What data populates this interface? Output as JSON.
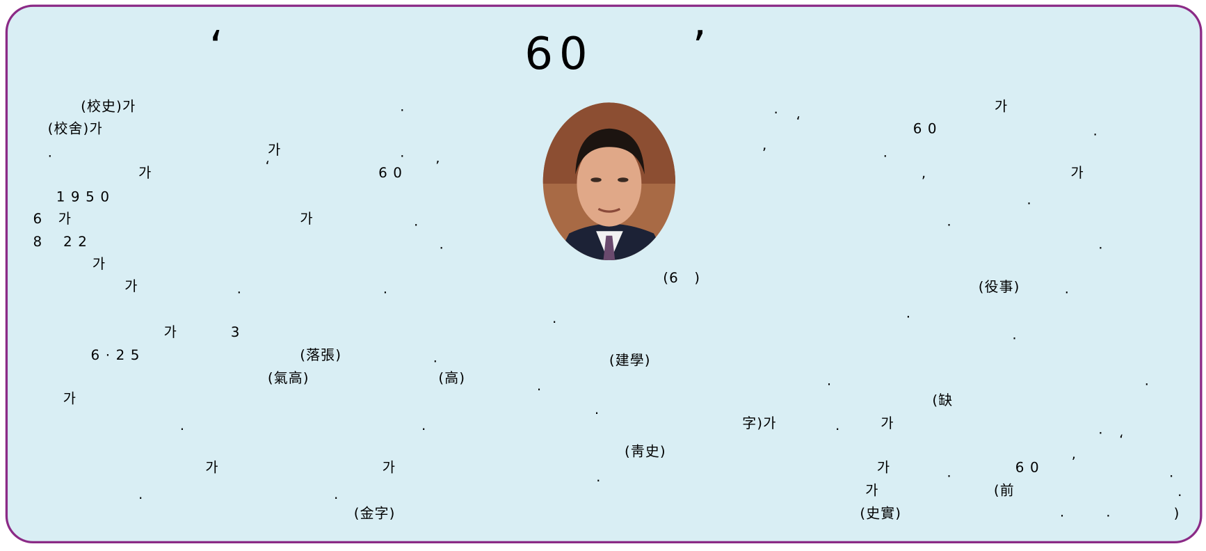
{
  "title": [
    "‘",
    "60",
    "’"
  ],
  "fragments": [
    "(校史)가",
    ".",
    "(校舍)가",
    ".",
    "가",
    ".",
    "가",
    "‘",
    "6 0",
    "’",
    "1 9 5 0",
    "6   가",
    "가",
    ".",
    "8    2 2",
    ".",
    "가",
    "가",
    ".",
    ".",
    "가",
    "3",
    "6 · 2 5",
    "(落張)",
    ".",
    "(氣高)",
    "(高)",
    "가",
    ".",
    ".",
    "가",
    "가",
    ".",
    ".",
    "(金字)",
    "(6   )",
    ".",
    "(建學)",
    ".",
    ".",
    "(靑史)",
    ".",
    ".",
    "가",
    "‘",
    "6 0",
    ".",
    ",",
    ".",
    ",",
    "가",
    ".",
    ".",
    ".",
    "(役事)",
    ".",
    ".",
    ".",
    ".",
    ".",
    "(缺",
    "字)가",
    ".",
    "가",
    ".",
    "‘",
    "가",
    ".",
    "6 0",
    "’",
    ".",
    "가",
    "(前",
    "·",
    "(史實)",
    "·",
    "·",
    ")"
  ]
}
